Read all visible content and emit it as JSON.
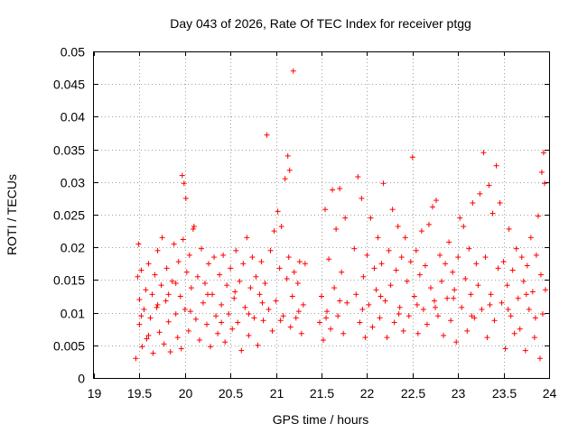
{
  "chart_data": {
    "type": "scatter",
    "title": "Day 043 of 2026, Rate Of TEC Index for receiver ptgg",
    "xlabel": "GPS time / hours",
    "ylabel": "ROTI / TECUs",
    "xlim": [
      19,
      24
    ],
    "ylim": [
      0,
      0.05
    ],
    "xticks": [
      19,
      19.5,
      20,
      20.5,
      21,
      21.5,
      22,
      22.5,
      23,
      23.5,
      24
    ],
    "xtick_labels": [
      "19",
      "19.5",
      "20",
      "20.5",
      "21",
      "21.5",
      "22",
      "22.5",
      "23",
      "23.5",
      "24"
    ],
    "yticks": [
      0,
      0.005,
      0.01,
      0.015,
      0.02,
      0.025,
      0.03,
      0.035,
      0.04,
      0.045,
      0.05
    ],
    "ytick_labels": [
      "0",
      "0.005",
      "0.01",
      "0.015",
      "0.02",
      "0.025",
      "0.03",
      "0.035",
      "0.04",
      "0.045",
      "0.05"
    ],
    "grid": true,
    "marker": "plus",
    "marker_color": "#ff0000",
    "series": [
      {
        "name": "ROTI",
        "points": [
          [
            19.46,
            0.003
          ],
          [
            19.48,
            0.0155
          ],
          [
            19.49,
            0.0205
          ],
          [
            19.5,
            0.0082
          ],
          [
            19.5,
            0.012
          ],
          [
            19.52,
            0.0165
          ],
          [
            19.53,
            0.0048
          ],
          [
            19.55,
            0.0105
          ],
          [
            19.57,
            0.0135
          ],
          [
            19.58,
            0.006
          ],
          [
            19.6,
            0.0175
          ],
          [
            19.62,
            0.0092
          ],
          [
            19.64,
            0.0128
          ],
          [
            19.65,
            0.0038
          ],
          [
            19.67,
            0.0158
          ],
          [
            19.69,
            0.0108
          ],
          [
            19.7,
            0.0195
          ],
          [
            19.72,
            0.007
          ],
          [
            19.74,
            0.0142
          ],
          [
            19.75,
            0.0215
          ],
          [
            19.77,
            0.0052
          ],
          [
            19.79,
            0.0118
          ],
          [
            19.8,
            0.0168
          ],
          [
            19.82,
            0.0086
          ],
          [
            19.84,
            0.004
          ],
          [
            19.86,
            0.0148
          ],
          [
            19.88,
            0.0205
          ],
          [
            19.9,
            0.0098
          ],
          [
            19.92,
            0.0062
          ],
          [
            19.93,
            0.0178
          ],
          [
            19.95,
            0.0125
          ],
          [
            19.96,
            0.0045
          ],
          [
            19.97,
            0.031
          ],
          [
            19.98,
            0.0212
          ],
          [
            19.99,
            0.0298
          ],
          [
            20.0,
            0.0105
          ],
          [
            20.01,
            0.0275
          ],
          [
            20.02,
            0.0162
          ],
          [
            20.04,
            0.0072
          ],
          [
            20.05,
            0.0188
          ],
          [
            20.07,
            0.0138
          ],
          [
            20.09,
            0.0228
          ],
          [
            20.1,
            0.0232
          ],
          [
            20.12,
            0.009
          ],
          [
            20.14,
            0.0155
          ],
          [
            20.16,
            0.0058
          ],
          [
            20.18,
            0.0198
          ],
          [
            20.2,
            0.0115
          ],
          [
            20.22,
            0.0145
          ],
          [
            20.24,
            0.0082
          ],
          [
            20.26,
            0.0175
          ],
          [
            20.28,
            0.0048
          ],
          [
            20.3,
            0.0128
          ],
          [
            20.32,
            0.0185
          ],
          [
            20.34,
            0.0095
          ],
          [
            20.36,
            0.0068
          ],
          [
            20.38,
            0.0158
          ],
          [
            20.4,
            0.0112
          ],
          [
            20.42,
            0.0188
          ],
          [
            20.44,
            0.0055
          ],
          [
            20.46,
            0.0142
          ],
          [
            20.48,
            0.0098
          ],
          [
            20.5,
            0.0168
          ],
          [
            20.52,
            0.0075
          ],
          [
            20.54,
            0.0122
          ],
          [
            20.56,
            0.0195
          ],
          [
            20.58,
            0.0085
          ],
          [
            20.6,
            0.0148
          ],
          [
            20.62,
            0.0042
          ],
          [
            20.64,
            0.0175
          ],
          [
            20.66,
            0.0108
          ],
          [
            20.68,
            0.0215
          ],
          [
            20.7,
            0.0065
          ],
          [
            20.72,
            0.0138
          ],
          [
            20.74,
            0.0185
          ],
          [
            20.76,
            0.0092
          ],
          [
            20.78,
            0.0155
          ],
          [
            20.8,
            0.005
          ],
          [
            20.82,
            0.0128
          ],
          [
            20.84,
            0.0178
          ],
          [
            20.86,
            0.0088
          ],
          [
            20.88,
            0.0145
          ],
          [
            20.9,
            0.0372
          ],
          [
            20.92,
            0.0105
          ],
          [
            20.94,
            0.0195
          ],
          [
            20.96,
            0.0072
          ],
          [
            20.98,
            0.0225
          ],
          [
            21.0,
            0.0118
          ],
          [
            21.02,
            0.0255
          ],
          [
            21.04,
            0.0168
          ],
          [
            21.06,
            0.0232
          ],
          [
            21.08,
            0.0095
          ],
          [
            21.1,
            0.0305
          ],
          [
            21.12,
            0.0152
          ],
          [
            21.13,
            0.034
          ],
          [
            21.14,
            0.0185
          ],
          [
            21.15,
            0.0318
          ],
          [
            21.16,
            0.0078
          ],
          [
            21.18,
            0.0125
          ],
          [
            21.19,
            0.047
          ],
          [
            21.2,
            0.0162
          ],
          [
            21.22,
            0.0092
          ],
          [
            21.24,
            0.0145
          ],
          [
            21.26,
            0.0178
          ],
          [
            21.28,
            0.0068
          ],
          [
            21.3,
            0.0112
          ],
          [
            21.32,
            0.0175
          ],
          [
            21.48,
            0.0085
          ],
          [
            21.5,
            0.0125
          ],
          [
            21.52,
            0.0058
          ],
          [
            21.54,
            0.0258
          ],
          [
            21.56,
            0.0102
          ],
          [
            21.58,
            0.0182
          ],
          [
            21.6,
            0.0075
          ],
          [
            21.62,
            0.0288
          ],
          [
            21.64,
            0.0138
          ],
          [
            21.66,
            0.0228
          ],
          [
            21.68,
            0.0095
          ],
          [
            21.7,
            0.029
          ],
          [
            21.72,
            0.0162
          ],
          [
            21.74,
            0.0068
          ],
          [
            21.76,
            0.0245
          ],
          [
            21.78,
            0.0115
          ],
          [
            21.86,
            0.0198
          ],
          [
            21.88,
            0.0128
          ],
          [
            21.9,
            0.0308
          ],
          [
            21.92,
            0.0085
          ],
          [
            21.94,
            0.0275
          ],
          [
            21.96,
            0.0155
          ],
          [
            21.98,
            0.0062
          ],
          [
            22.0,
            0.0188
          ],
          [
            22.02,
            0.0112
          ],
          [
            22.04,
            0.0245
          ],
          [
            22.06,
            0.0078
          ],
          [
            22.08,
            0.0168
          ],
          [
            22.1,
            0.0135
          ],
          [
            22.12,
            0.0215
          ],
          [
            22.14,
            0.0092
          ],
          [
            22.16,
            0.0175
          ],
          [
            22.18,
            0.0298
          ],
          [
            22.2,
            0.0118
          ],
          [
            22.22,
            0.0062
          ],
          [
            22.24,
            0.0195
          ],
          [
            22.26,
            0.0142
          ],
          [
            22.28,
            0.0258
          ],
          [
            22.3,
            0.0085
          ],
          [
            22.32,
            0.0165
          ],
          [
            22.34,
            0.0232
          ],
          [
            22.36,
            0.0108
          ],
          [
            22.38,
            0.0185
          ],
          [
            22.4,
            0.0072
          ],
          [
            22.42,
            0.0215
          ],
          [
            22.44,
            0.0148
          ],
          [
            22.46,
            0.0095
          ],
          [
            22.48,
            0.0178
          ],
          [
            22.5,
            0.0338
          ],
          [
            22.52,
            0.0125
          ],
          [
            22.54,
            0.0195
          ],
          [
            22.56,
            0.0068
          ],
          [
            22.58,
            0.0158
          ],
          [
            22.6,
            0.0225
          ],
          [
            22.62,
            0.0105
          ],
          [
            22.64,
            0.0172
          ],
          [
            22.66,
            0.0082
          ],
          [
            22.68,
            0.0235
          ],
          [
            22.7,
            0.0138
          ],
          [
            22.72,
            0.0262
          ],
          [
            22.74,
            0.0118
          ],
          [
            22.76,
            0.0272
          ],
          [
            22.78,
            0.0095
          ],
          [
            22.8,
            0.0188
          ],
          [
            22.82,
            0.0148
          ],
          [
            22.84,
            0.0065
          ],
          [
            22.86,
            0.0175
          ],
          [
            22.88,
            0.0122
          ],
          [
            22.9,
            0.0208
          ],
          [
            22.92,
            0.0088
          ],
          [
            22.94,
            0.0162
          ],
          [
            22.96,
            0.0135
          ],
          [
            22.98,
            0.0055
          ],
          [
            23.0,
            0.0185
          ],
          [
            23.02,
            0.0245
          ],
          [
            23.04,
            0.0108
          ],
          [
            23.06,
            0.0232
          ],
          [
            23.08,
            0.0152
          ],
          [
            23.1,
            0.0072
          ],
          [
            23.12,
            0.0198
          ],
          [
            23.14,
            0.0128
          ],
          [
            23.16,
            0.0268
          ],
          [
            23.18,
            0.0092
          ],
          [
            23.2,
            0.0175
          ],
          [
            23.22,
            0.0142
          ],
          [
            23.24,
            0.0282
          ],
          [
            23.26,
            0.0105
          ],
          [
            23.28,
            0.0345
          ],
          [
            23.3,
            0.0185
          ],
          [
            23.32,
            0.0062
          ],
          [
            23.34,
            0.0295
          ],
          [
            23.36,
            0.0128
          ],
          [
            23.38,
            0.0252
          ],
          [
            23.4,
            0.0088
          ],
          [
            23.42,
            0.0325
          ],
          [
            23.44,
            0.0168
          ],
          [
            23.46,
            0.0268
          ],
          [
            23.48,
            0.0115
          ],
          [
            23.5,
            0.0178
          ],
          [
            23.52,
            0.0045
          ],
          [
            23.54,
            0.0142
          ],
          [
            23.56,
            0.0228
          ],
          [
            23.58,
            0.0095
          ],
          [
            23.6,
            0.0165
          ],
          [
            23.62,
            0.0068
          ],
          [
            23.64,
            0.0198
          ],
          [
            23.66,
            0.0122
          ],
          [
            23.68,
            0.0075
          ],
          [
            23.7,
            0.0185
          ],
          [
            23.72,
            0.0148
          ],
          [
            23.74,
            0.0042
          ],
          [
            23.76,
            0.0172
          ],
          [
            23.78,
            0.0105
          ],
          [
            23.8,
            0.0215
          ],
          [
            23.82,
            0.0132
          ],
          [
            23.84,
            0.0062
          ],
          [
            23.86,
            0.0188
          ],
          [
            23.88,
            0.0248
          ],
          [
            23.9,
            0.003
          ],
          [
            23.91,
            0.0158
          ],
          [
            23.92,
            0.0315
          ],
          [
            23.93,
            0.0098
          ],
          [
            23.94,
            0.0345
          ],
          [
            23.95,
            0.0298
          ],
          [
            23.96,
            0.0135
          ],
          [
            19.52,
            0.0095
          ],
          [
            19.6,
            0.0065
          ],
          [
            19.7,
            0.0112
          ],
          [
            19.82,
            0.0128
          ],
          [
            19.9,
            0.0145
          ],
          [
            20.06,
            0.0102
          ],
          [
            20.25,
            0.0128
          ],
          [
            20.4,
            0.0085
          ],
          [
            20.55,
            0.0132
          ],
          [
            20.7,
            0.0098
          ],
          [
            20.85,
            0.0115
          ],
          [
            21.05,
            0.0088
          ],
          [
            21.25,
            0.0102
          ],
          [
            21.55,
            0.0092
          ],
          [
            21.7,
            0.0118
          ],
          [
            21.95,
            0.0105
          ],
          [
            22.15,
            0.0125
          ],
          [
            22.35,
            0.0098
          ],
          [
            22.55,
            0.0112
          ],
          [
            22.75,
            0.0108
          ],
          [
            22.95,
            0.0122
          ],
          [
            23.15,
            0.0095
          ],
          [
            23.35,
            0.0112
          ],
          [
            23.55,
            0.0105
          ],
          [
            23.75,
            0.0128
          ],
          [
            23.85,
            0.0092
          ]
        ]
      }
    ]
  }
}
